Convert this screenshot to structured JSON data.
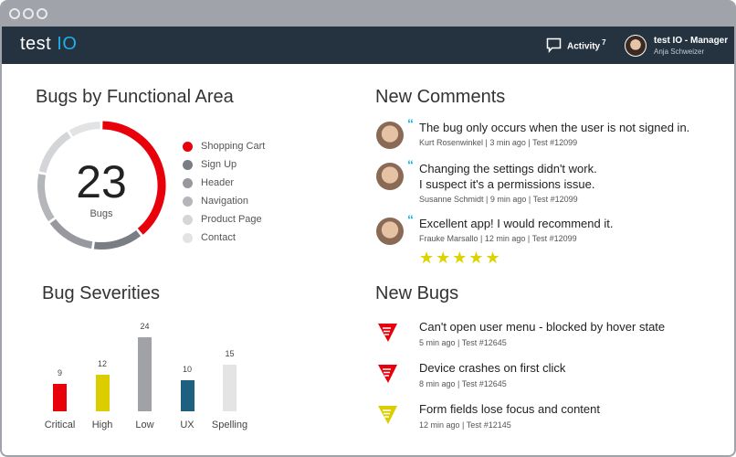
{
  "header": {
    "logo": "test IO",
    "activity_label": "Activity",
    "activity_count": "7",
    "user_role": "test IO - Manager",
    "user_name": "Anja Schweizer"
  },
  "functional_area": {
    "title": "Bugs by Functional Area",
    "total": "23",
    "total_label": "Bugs",
    "items": [
      {
        "label": "Shopping Cart",
        "value": 9,
        "color": "#e8000b"
      },
      {
        "label": "Sign Up",
        "value": 3,
        "color": "#7a7d84"
      },
      {
        "label": "Header",
        "value": 3,
        "color": "#97999f"
      },
      {
        "label": "Navigation",
        "value": 3,
        "color": "#b4b6ba"
      },
      {
        "label": "Product Page",
        "value": 3,
        "color": "#d4d5d8"
      },
      {
        "label": "Contact",
        "value": 2,
        "color": "#e2e3e5"
      }
    ]
  },
  "chart_data": {
    "type": "bar",
    "title": "Bug Severities",
    "categories": [
      "Critical",
      "High",
      "Low",
      "UX",
      "Spelling"
    ],
    "values": [
      9,
      12,
      24,
      10,
      15
    ],
    "colors": [
      "#e8000b",
      "#dccd00",
      "#a0a2a8",
      "#1f5f80",
      "#e4e4e4"
    ]
  },
  "comments": {
    "title": "New Comments",
    "items": [
      {
        "text": [
          "The bug only occurs when the user is not signed in."
        ],
        "meta": "Kurt Rosenwinkel | 3 min ago | Test #12099"
      },
      {
        "text": [
          "Changing the settings didn't work.",
          "I suspect it's a permissions issue."
        ],
        "meta": "Susanne Schmidt | 9 min ago | Test #12099"
      },
      {
        "text": [
          "Excellent app! I would recommend it."
        ],
        "meta": "Frauke Marsallo | 12 min ago | Test #12099",
        "rating": 5
      }
    ]
  },
  "bugs": {
    "title": "New Bugs",
    "items": [
      {
        "title": "Can't open user menu - blocked by hover state",
        "meta": "5 min ago | Test #12645",
        "severity_color": "#e8000b"
      },
      {
        "title": "Device crashes on first click",
        "meta": "8 min ago | Test #12645",
        "severity_color": "#e8000b"
      },
      {
        "title": "Form fields lose focus and content",
        "meta": "12 min ago | Test #12145",
        "severity_color": "#dccd00"
      }
    ]
  }
}
